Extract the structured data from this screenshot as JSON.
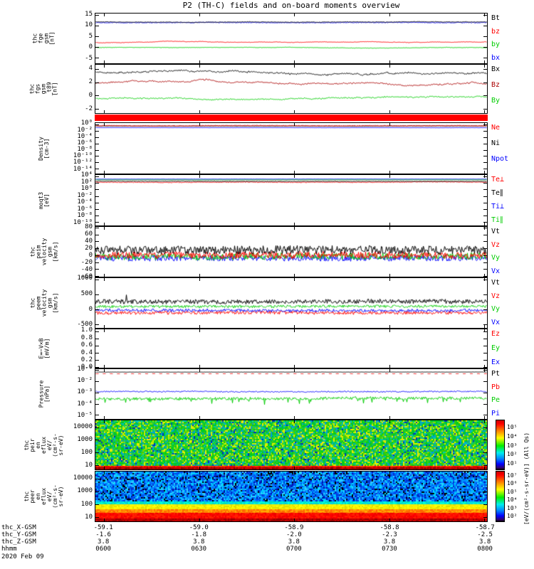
{
  "title": "P2 (TH-C) fields and on-board moments overview",
  "chart_data": {
    "type": "multi-panel-timeseries",
    "x_axis": {
      "tick_labels": [
        "0600",
        "0630",
        "0700",
        "0730",
        "0800"
      ],
      "date": "2020 Feb 09"
    },
    "panels": [
      {
        "id": "fge",
        "type": "line",
        "label_lines": [
          "thc",
          "fge",
          "gsm",
          "[nT]"
        ],
        "ylim": [
          -7.5,
          15.8
        ],
        "yticks": [
          {
            "v": 15,
            "label": "15"
          },
          {
            "v": 10,
            "label": "10"
          },
          {
            "v": 5,
            "label": "5"
          },
          {
            "v": 0,
            "label": "0"
          },
          {
            "v": -5,
            "label": "-5"
          }
        ],
        "legend": [
          {
            "label": "Bt",
            "color": "#000000"
          },
          {
            "label": "bz",
            "color": "#ff0000"
          },
          {
            "label": "by",
            "color": "#00cc00"
          },
          {
            "label": "bx",
            "color": "#0000ff"
          }
        ],
        "series": [
          {
            "name": "by",
            "color": "#00cc00",
            "base": -0.1,
            "wander": 0.05,
            "noise": 0.08
          },
          {
            "name": "bz",
            "color": "#ff0000",
            "base": 2.3,
            "wander": 0.1,
            "noise": 0.08
          },
          {
            "name": "bx",
            "color": "#0000ff",
            "base": 11.5,
            "wander": 0.05,
            "noise": 0.15
          },
          {
            "name": "Bt",
            "color": "#000000",
            "base": 11.9,
            "wander": 0.05,
            "noise": 0.12
          }
        ]
      },
      {
        "id": "fgs",
        "type": "line",
        "label_lines": [
          "thc",
          "fgs",
          "gsm",
          "_t89",
          "[nT]"
        ],
        "ylim": [
          -2.7,
          4.7
        ],
        "yticks": [
          {
            "v": 4,
            "label": "4"
          },
          {
            "v": 2,
            "label": "2"
          },
          {
            "v": 0,
            "label": "0"
          },
          {
            "v": -2,
            "label": "-2"
          }
        ],
        "legend": [
          {
            "label": "Bx",
            "color": "#000000"
          },
          {
            "label": "Bz",
            "color": "#aa0000"
          },
          {
            "label": "By",
            "color": "#00cc00"
          }
        ],
        "series": [
          {
            "name": "By",
            "color": "#00cc00",
            "base": -0.4,
            "wander": 0.06,
            "noise": 0.08
          },
          {
            "name": "Bz",
            "color": "#aa0000",
            "base": 1.8,
            "wander": 0.11,
            "noise": 0.08
          },
          {
            "name": "Bx",
            "color": "#000000",
            "base": 3.6,
            "wander": 0.09,
            "noise": 0.1
          }
        ]
      },
      {
        "id": "roi",
        "type": "bar",
        "color": "#ff0000"
      },
      {
        "id": "density",
        "type": "line",
        "scale": "log",
        "label_lines": [
          "Density",
          "[cm-3]"
        ],
        "ylim": [
          -15.5,
          0.4
        ],
        "yticks": [
          {
            "v": 0,
            "label": "10⁰"
          },
          {
            "v": -2,
            "label": "10⁻²"
          },
          {
            "v": -4,
            "label": "10⁻⁴"
          },
          {
            "v": -6,
            "label": "10⁻⁶"
          },
          {
            "v": -8,
            "label": "10⁻⁸"
          },
          {
            "v": -10,
            "label": "10⁻¹⁰"
          },
          {
            "v": -12,
            "label": "10⁻¹²"
          },
          {
            "v": -14,
            "label": "10⁻¹⁴"
          }
        ],
        "legend": [
          {
            "label": "Ne",
            "color": "#ff0000"
          },
          {
            "label": "Ni",
            "color": "#000000"
          },
          {
            "label": "Npot",
            "color": "#0000ff"
          }
        ],
        "series": [
          {
            "name": "Ni",
            "color": "#000000",
            "base": -0.55,
            "wander": 0.01,
            "noise": 0.05
          },
          {
            "name": "Ne",
            "color": "#ff0000",
            "base": -0.45,
            "wander": 0.015,
            "noise": 0.1
          },
          {
            "name": "Npot",
            "color": "#0000ff",
            "base": -1.05,
            "wander": 0.004,
            "noise": 0.02
          }
        ]
      },
      {
        "id": "moqt3",
        "type": "line",
        "scale": "log",
        "label_lines": [
          "moqt3",
          "[eV]"
        ],
        "ylim": [
          -11,
          4.4
        ],
        "yticks": [
          {
            "v": 4,
            "label": "10⁴"
          },
          {
            "v": 2,
            "label": "10²"
          },
          {
            "v": 0,
            "label": "10⁰"
          },
          {
            "v": -2,
            "label": "10⁻²"
          },
          {
            "v": -4,
            "label": "10⁻⁴"
          },
          {
            "v": -6,
            "label": "10⁻⁶"
          },
          {
            "v": -8,
            "label": "10⁻⁸"
          },
          {
            "v": -10,
            "label": "10⁻¹⁰"
          }
        ],
        "legend": [
          {
            "label": "Te⊥",
            "color": "#ff0000"
          },
          {
            "label": "Te∥",
            "color": "#000000"
          },
          {
            "label": "Ti⊥",
            "color": "#0000ff"
          },
          {
            "label": "Ti∥",
            "color": "#00cc00"
          }
        ],
        "series": [
          {
            "name": "Te⊥",
            "color": "#ff0000",
            "base": 2.2,
            "wander": 0.02,
            "noise": 0.1
          },
          {
            "name": "Te∥",
            "color": "#000000",
            "base": 2.5,
            "wander": 0.006,
            "noise": 0.05
          },
          {
            "name": "Ti∥",
            "color": "#00cc00",
            "base": 2.95,
            "wander": 0.005,
            "noise": 0.04
          },
          {
            "name": "Ti⊥",
            "color": "#0000ff",
            "base": 3.15,
            "wander": 0.004,
            "noise": 0.03
          }
        ]
      },
      {
        "id": "peim",
        "type": "line",
        "label_lines": [
          "thc",
          "peim",
          "velocity",
          "gsm",
          "[km/s]"
        ],
        "ylim": [
          -62,
          82
        ],
        "yticks": [
          {
            "v": 80,
            "label": "80"
          },
          {
            "v": 60,
            "label": "60"
          },
          {
            "v": 40,
            "label": "40"
          },
          {
            "v": 20,
            "label": "20"
          },
          {
            "v": 0,
            "label": "0"
          },
          {
            "v": -20,
            "label": "-20"
          },
          {
            "v": -40,
            "label": "-40"
          },
          {
            "v": -60,
            "label": "-60"
          }
        ],
        "legend": [
          {
            "label": "Vt",
            "color": "#000000"
          },
          {
            "label": "Vz",
            "color": "#ff0000"
          },
          {
            "label": "Vy",
            "color": "#00cc00"
          },
          {
            "label": "Vx",
            "color": "#0000ff"
          }
        ],
        "series": [
          {
            "name": "Vx",
            "color": "#0000ff",
            "base": -8,
            "wander": 0.3,
            "noise": 9
          },
          {
            "name": "Vy",
            "color": "#00cc00",
            "base": -4,
            "wander": 0.3,
            "noise": 10
          },
          {
            "name": "Vz",
            "color": "#ff0000",
            "base": 0,
            "wander": 0.3,
            "noise": 10
          },
          {
            "name": "Vt",
            "color": "#000000",
            "base": 15,
            "wander": 0.4,
            "noise": 12
          }
        ]
      },
      {
        "id": "peem",
        "type": "line",
        "label_lines": [
          "thc",
          "peem",
          "velocity",
          "gsm",
          "[km/s]"
        ],
        "ylim": [
          -620,
          1040
        ],
        "yticks": [
          {
            "v": 1000,
            "label": "1000"
          },
          {
            "v": 500,
            "label": "500"
          },
          {
            "v": 0,
            "label": "0"
          },
          {
            "v": -500,
            "label": "-500"
          }
        ],
        "legend": [
          {
            "label": "Vt",
            "color": "#000000"
          },
          {
            "label": "Vz",
            "color": "#ff0000"
          },
          {
            "label": "Vy",
            "color": "#00cc00"
          },
          {
            "label": "Vx",
            "color": "#0000ff"
          }
        ],
        "series": [
          {
            "name": "Vz",
            "color": "#ff0000",
            "base": -120,
            "wander": 2,
            "noise": 55
          },
          {
            "name": "Vx",
            "color": "#0000ff",
            "base": -40,
            "wander": 2,
            "noise": 50
          },
          {
            "name": "Vy",
            "color": "#00cc00",
            "base": 95,
            "wander": 1.5,
            "noise": 45
          },
          {
            "name": "Vt",
            "color": "#000000",
            "base": 250,
            "wander": 3,
            "noise": 75,
            "spikes": {
              "p": 0.004,
              "amp": 450
            }
          }
        ]
      },
      {
        "id": "efield",
        "type": "line",
        "label_lines": [
          "E=−V×B",
          "[mV/m]"
        ],
        "ylim": [
          -0.02,
          1.05
        ],
        "yticks": [
          {
            "v": 1.0,
            "label": "1.0"
          },
          {
            "v": 0.8,
            "label": "0.8"
          },
          {
            "v": 0.6,
            "label": "0.6"
          },
          {
            "v": 0.4,
            "label": "0.4"
          },
          {
            "v": 0.2,
            "label": "0.2"
          },
          {
            "v": 0.0,
            "label": "0.0"
          }
        ],
        "legend": [
          {
            "label": "Ez",
            "color": "#ff0000"
          },
          {
            "label": "Ey",
            "color": "#00cc00"
          },
          {
            "label": "Ex",
            "color": "#0000ff"
          }
        ],
        "series": []
      },
      {
        "id": "pressure",
        "type": "line",
        "scale": "log",
        "label_lines": [
          "Pressure",
          "[nPa]"
        ],
        "ylim": [
          -5.35,
          -0.92
        ],
        "yticks": [
          {
            "v": -1,
            "label": "10⁻¹"
          },
          {
            "v": -2,
            "label": "10⁻²"
          },
          {
            "v": -3,
            "label": "10⁻³"
          },
          {
            "v": -4,
            "label": "10⁻⁴"
          },
          {
            "v": -5,
            "label": "10⁻⁵"
          }
        ],
        "legend": [
          {
            "label": "Pt",
            "color": "#000000"
          },
          {
            "label": "Pb",
            "color": "#ff0000"
          },
          {
            "label": "Pe",
            "color": "#00cc00"
          },
          {
            "label": "Pi",
            "color": "#0000ff"
          }
        ],
        "series": [
          {
            "name": "Pe",
            "color": "#00cc00",
            "base": -3.55,
            "wander": 0.01,
            "noise": 0.12,
            "spikedown": {
              "p": 0.08,
              "amp": 0.45
            }
          },
          {
            "name": "Pi",
            "color": "#0000ff",
            "base": -2.92,
            "wander": 0.008,
            "noise": 0.05
          },
          {
            "name": "Pb",
            "color": "#ff0000",
            "base": -1.33,
            "wander": 0.001,
            "noise": 0.01,
            "dash": [
              4,
              6
            ]
          },
          {
            "name": "Pt",
            "color": "#000000",
            "base": -1.18,
            "wander": 0.001,
            "noise": 0.008
          }
        ]
      },
      {
        "id": "peir",
        "type": "spectrogram",
        "label_lines": [
          "thc",
          "peir",
          "en",
          "eflux",
          "eV/",
          "(cm²-s-",
          "sr-eV)"
        ],
        "ylim": [
          0.65,
          4.55
        ],
        "yticks": [
          {
            "v": 4,
            "label": "10000"
          },
          {
            "v": 3,
            "label": "1000"
          },
          {
            "v": 2,
            "label": "100"
          },
          {
            "v": 1,
            "label": "10"
          }
        ],
        "legend": [],
        "bands": [
          {
            "top": 0,
            "bottom": 0.93,
            "palette": [
              "#00cc22",
              "#11cc11",
              "#00bb55",
              "#33dd00",
              "#88dd00",
              "#ddee00",
              "#eeee00",
              "#00bb88",
              "#00aacc",
              "#22cc44",
              "#00cc22",
              "#44cc00",
              "#bbee00",
              "#00ccaa",
              "#0099dd",
              "#00cc22",
              "#33cc33",
              "#0033bb"
            ]
          },
          {
            "top": 0.93,
            "bottom": 0.965,
            "palette": [
              "#ff1100",
              "#ee0000",
              "#ff3300"
            ]
          },
          {
            "top": 0.965,
            "bottom": 1,
            "palette": [
              "#cc0000",
              "#aa0000",
              "#800000"
            ]
          }
        ]
      },
      {
        "id": "peer",
        "type": "spectrogram",
        "label_lines": [
          "thc",
          "peer",
          "en",
          "eflux",
          "eV/",
          "(cm²-s-",
          "sr-eV)"
        ],
        "ylim": [
          0.65,
          4.55
        ],
        "yticks": [
          {
            "v": 4,
            "label": "10000"
          },
          {
            "v": 3,
            "label": "1000"
          },
          {
            "v": 2,
            "label": "100"
          },
          {
            "v": 1,
            "label": "10"
          }
        ],
        "legend": [],
        "bands": [
          {
            "top": 0,
            "bottom": 0.6,
            "palette": [
              "#0044ee",
              "#0066ff",
              "#0099ff",
              "#00bbff",
              "#33ccff",
              "#0033cc",
              "#0011aa",
              "#000000",
              "#00ddff",
              "#0088ff",
              "#0055ee",
              "#00aaff"
            ]
          },
          {
            "top": 0.6,
            "bottom": 0.67,
            "palette": [
              "#00eecc",
              "#00ddbb",
              "#00ffdd",
              "#00ccee"
            ]
          },
          {
            "top": 0.67,
            "bottom": 0.77,
            "palette": [
              "#eeee00",
              "#ffff00",
              "#dddd00",
              "#ffee00"
            ]
          },
          {
            "top": 0.77,
            "bottom": 0.83,
            "palette": [
              "#ffaa00",
              "#ff8800",
              "#ff6600"
            ]
          },
          {
            "top": 0.83,
            "bottom": 0.95,
            "palette": [
              "#ff0000",
              "#ff1100",
              "#ee0000",
              "#ff2200"
            ]
          },
          {
            "top": 0.95,
            "bottom": 1,
            "palette": [
              "#cc0000",
              "#bb0000",
              "#990000"
            ]
          }
        ]
      }
    ]
  },
  "colorbars": [
    {
      "id": "peir",
      "ticks": [
        "10⁵",
        "10⁴",
        "10³",
        "10²",
        "10¹"
      ]
    },
    {
      "id": "peer",
      "ticks": [
        "10⁷",
        "10⁶",
        "10⁵",
        "10⁴",
        "10³",
        "10²"
      ]
    }
  ],
  "colorbar_unit": "[eV/(cm²-s-sr-eV)] (All Qs)",
  "bottom_axis": {
    "rows": [
      {
        "label": "thc_X-GSM",
        "values": [
          "-59.1",
          "-59.0",
          "-58.9",
          "-58.8",
          "-58.7"
        ]
      },
      {
        "label": "thc_Y-GSM",
        "values": [
          "-1.6",
          "-1.8",
          "-2.0",
          "-2.3",
          "-2.5"
        ]
      },
      {
        "label": "thc_Z-GSM",
        "values": [
          "3.8",
          "3.8",
          "3.8",
          "3.8",
          "3.8"
        ]
      },
      {
        "label": "hhmm",
        "values": [
          "0600",
          "0630",
          "0700",
          "0730",
          "0800"
        ]
      }
    ],
    "date": "2020 Feb 09"
  }
}
